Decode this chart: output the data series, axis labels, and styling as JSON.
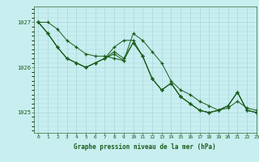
{
  "title": "Graphe pression niveau de la mer (hPa)",
  "background_color": "#c8eef0",
  "grid_color": "#a8d8dc",
  "line_color": "#1a5c1a",
  "xlim": [
    -0.5,
    23
  ],
  "ylim": [
    1024.55,
    1027.35
  ],
  "yticks": [
    1025,
    1026,
    1027
  ],
  "xticks": [
    0,
    1,
    2,
    3,
    4,
    5,
    6,
    7,
    8,
    9,
    10,
    11,
    12,
    13,
    14,
    15,
    16,
    17,
    18,
    19,
    20,
    21,
    22,
    23
  ],
  "series": [
    [
      1027.0,
      1027.0,
      1026.85,
      1026.6,
      1026.45,
      1026.3,
      1026.25,
      1026.25,
      1026.2,
      1026.15,
      1026.75,
      1026.6,
      1026.35,
      1026.1,
      1025.7,
      1025.5,
      1025.4,
      1025.25,
      1025.15,
      1025.05,
      1025.1,
      1025.25,
      1025.1,
      1025.05
    ],
    [
      1027.0,
      1026.75,
      1026.45,
      1026.2,
      1026.1,
      1026.0,
      1026.1,
      1026.2,
      1026.45,
      1026.6,
      1026.6,
      1026.25,
      1025.75,
      1025.5,
      1025.65,
      1025.35,
      1025.2,
      1025.05,
      1025.0,
      1025.05,
      1025.15,
      1025.45,
      1025.05,
      1025.0
    ],
    [
      1027.0,
      1026.75,
      1026.45,
      1026.2,
      1026.1,
      1026.0,
      1026.1,
      1026.2,
      1026.35,
      1026.2,
      1026.55,
      1026.25,
      1025.75,
      1025.5,
      1025.65,
      1025.35,
      1025.2,
      1025.05,
      1025.0,
      1025.05,
      1025.15,
      1025.45,
      1025.05,
      1025.0
    ],
    [
      1027.0,
      1026.75,
      1026.45,
      1026.2,
      1026.1,
      1026.0,
      1026.1,
      1026.2,
      1026.3,
      1026.15,
      1026.55,
      1026.25,
      1025.75,
      1025.5,
      1025.65,
      1025.35,
      1025.2,
      1025.05,
      1025.0,
      1025.05,
      1025.15,
      1025.45,
      1025.05,
      1025.0
    ]
  ]
}
